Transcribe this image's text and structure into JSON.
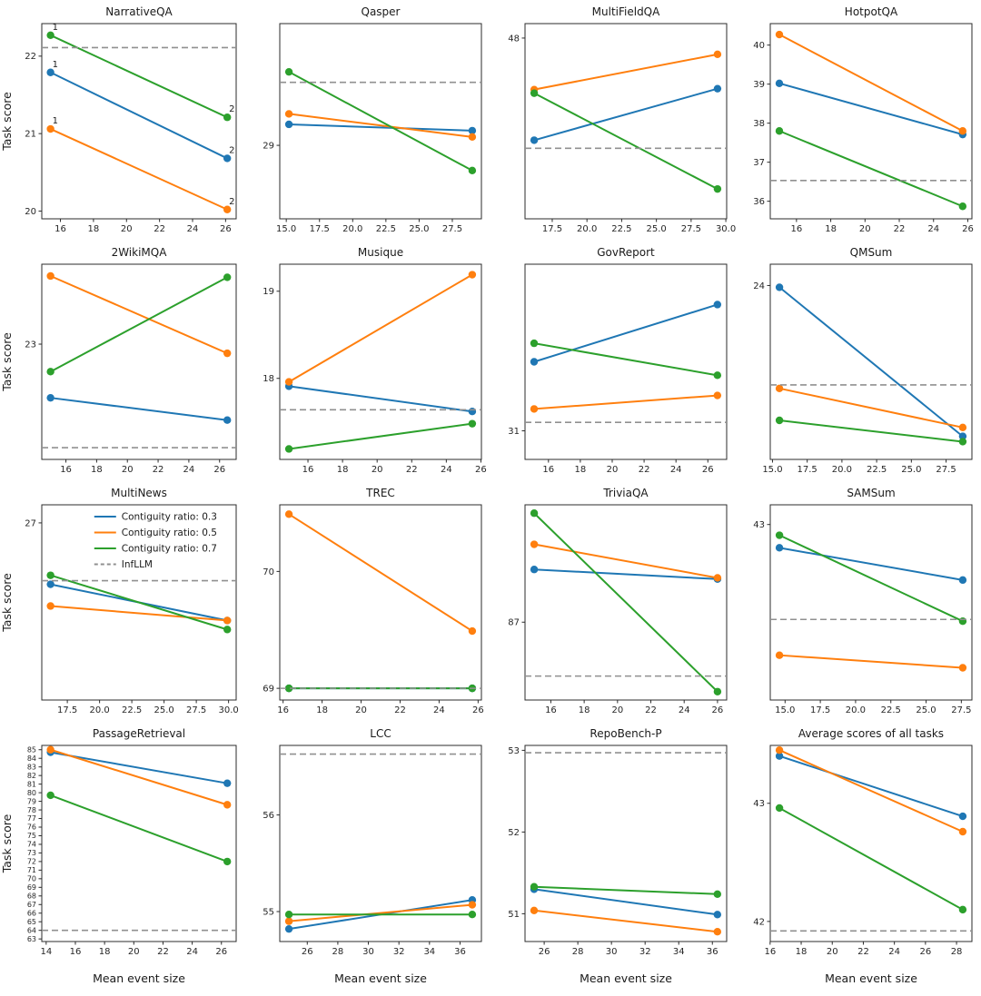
{
  "figure": {
    "ylabel": "Task score",
    "xlabel": "Mean event size",
    "colors": {
      "blue": "#1f77b4",
      "orange": "#ff7f0e",
      "green": "#2ca02c",
      "dashed": "#909090",
      "spine": "#2b2b2b",
      "text": "#262626",
      "title": "#1a1a1a"
    },
    "legend": {
      "entries": [
        {
          "label": "Contiguity ratio: 0.3",
          "color_key": "blue",
          "style": "solid"
        },
        {
          "label": "Contiguity ratio: 0.5",
          "color_key": "orange",
          "style": "solid"
        },
        {
          "label": "Contiguity ratio: 0.7",
          "color_key": "green",
          "style": "solid"
        },
        {
          "label": "InfLLM",
          "color_key": "dashed",
          "style": "dashed"
        }
      ]
    }
  },
  "chart_data": [
    {
      "type": "line",
      "title": "NarrativeQA",
      "ylabel": "Task score",
      "x": [
        15.4,
        26.1
      ],
      "xlim": [
        14.87,
        26.64
      ],
      "ylim": [
        19.9,
        22.42
      ],
      "xticks": [
        "16",
        "18",
        "20",
        "22",
        "24",
        "26"
      ],
      "yticks": [
        "20",
        "21",
        "22"
      ],
      "series": [
        {
          "name": "Contiguity ratio: 0.3",
          "color_key": "blue",
          "values": [
            21.79,
            20.68
          ]
        },
        {
          "name": "Contiguity ratio: 0.5",
          "color_key": "orange",
          "values": [
            21.06,
            20.02
          ]
        },
        {
          "name": "Contiguity ratio: 0.7",
          "color_key": "green",
          "values": [
            22.27,
            21.21
          ]
        }
      ],
      "infllm_baseline": 22.11,
      "point_labels": [
        "1",
        "2"
      ]
    },
    {
      "type": "line",
      "title": "Qasper",
      "x": [
        15.2,
        29.0
      ],
      "xlim": [
        14.51,
        29.69
      ],
      "ylim": [
        28.65,
        29.58
      ],
      "xticks": [
        "15.0",
        "17.5",
        "20.0",
        "22.5",
        "25.0",
        "27.5"
      ],
      "yticks": [
        "29"
      ],
      "series": [
        {
          "name": "Contiguity ratio: 0.3",
          "color_key": "blue",
          "values": [
            29.1,
            29.07
          ]
        },
        {
          "name": "Contiguity ratio: 0.5",
          "color_key": "orange",
          "values": [
            29.15,
            29.04
          ]
        },
        {
          "name": "Contiguity ratio: 0.7",
          "color_key": "green",
          "values": [
            29.35,
            28.88
          ]
        }
      ],
      "infllm_baseline": 29.3
    },
    {
      "type": "line",
      "title": "MultiFieldQA",
      "x": [
        16.2,
        29.4
      ],
      "xlim": [
        15.54,
        30.06
      ],
      "ylim": [
        46.0,
        48.16
      ],
      "xticks": [
        "17.5",
        "20.0",
        "22.5",
        "25.0",
        "27.5",
        "30.0"
      ],
      "yticks": [
        "48"
      ],
      "series": [
        {
          "name": "Contiguity ratio: 0.3",
          "color_key": "blue",
          "values": [
            46.87,
            47.44
          ]
        },
        {
          "name": "Contiguity ratio: 0.5",
          "color_key": "orange",
          "values": [
            47.43,
            47.82
          ]
        },
        {
          "name": "Contiguity ratio: 0.7",
          "color_key": "green",
          "values": [
            47.39,
            46.33
          ]
        }
      ],
      "infllm_baseline": 46.78
    },
    {
      "type": "line",
      "title": "HotpotQA",
      "x": [
        15.0,
        25.7
      ],
      "xlim": [
        14.47,
        26.24
      ],
      "ylim": [
        35.55,
        40.55
      ],
      "xticks": [
        "16",
        "18",
        "20",
        "22",
        "24",
        "26"
      ],
      "yticks": [
        "36",
        "37",
        "38",
        "39",
        "40"
      ],
      "series": [
        {
          "name": "Contiguity ratio: 0.3",
          "color_key": "blue",
          "values": [
            39.02,
            37.71
          ]
        },
        {
          "name": "Contiguity ratio: 0.5",
          "color_key": "orange",
          "values": [
            40.27,
            37.8
          ]
        },
        {
          "name": "Contiguity ratio: 0.7",
          "color_key": "green",
          "values": [
            37.8,
            35.87
          ]
        }
      ],
      "infllm_baseline": 36.53
    },
    {
      "type": "line",
      "title": "2WikiMQA",
      "ylabel": "Task score",
      "x": [
        15.0,
        26.5
      ],
      "xlim": [
        14.43,
        27.08
      ],
      "ylim": [
        22.12,
        23.61
      ],
      "xticks": [
        "16",
        "18",
        "20",
        "22",
        "24",
        "26"
      ],
      "yticks": [
        "23"
      ],
      "series": [
        {
          "name": "Contiguity ratio: 0.3",
          "color_key": "blue",
          "values": [
            22.59,
            22.42
          ]
        },
        {
          "name": "Contiguity ratio: 0.5",
          "color_key": "orange",
          "values": [
            23.52,
            22.93
          ]
        },
        {
          "name": "Contiguity ratio: 0.7",
          "color_key": "green",
          "values": [
            22.79,
            23.51
          ]
        }
      ],
      "infllm_baseline": 22.21
    },
    {
      "type": "line",
      "title": "Musique",
      "x": [
        14.9,
        25.5
      ],
      "xlim": [
        14.37,
        26.03
      ],
      "ylim": [
        17.07,
        19.31
      ],
      "xticks": [
        "16",
        "18",
        "20",
        "22",
        "24",
        "26"
      ],
      "yticks": [
        "18",
        "19"
      ],
      "series": [
        {
          "name": "Contiguity ratio: 0.3",
          "color_key": "blue",
          "values": [
            17.91,
            17.62
          ]
        },
        {
          "name": "Contiguity ratio: 0.5",
          "color_key": "orange",
          "values": [
            17.96,
            19.19
          ]
        },
        {
          "name": "Contiguity ratio: 0.7",
          "color_key": "green",
          "values": [
            17.19,
            17.48
          ]
        }
      ],
      "infllm_baseline": 17.64
    },
    {
      "type": "line",
      "title": "GovReport",
      "x": [
        15.1,
        26.6
      ],
      "xlim": [
        14.53,
        27.18
      ],
      "ylim": [
        30.83,
        31.99
      ],
      "xticks": [
        "16",
        "18",
        "20",
        "22",
        "24",
        "26"
      ],
      "yticks": [
        "31"
      ],
      "series": [
        {
          "name": "Contiguity ratio: 0.3",
          "color_key": "blue",
          "values": [
            31.41,
            31.75
          ]
        },
        {
          "name": "Contiguity ratio: 0.5",
          "color_key": "orange",
          "values": [
            31.13,
            31.21
          ]
        },
        {
          "name": "Contiguity ratio: 0.7",
          "color_key": "green",
          "values": [
            31.52,
            31.33
          ]
        }
      ],
      "infllm_baseline": 31.05
    },
    {
      "type": "line",
      "title": "QMSum",
      "x": [
        15.5,
        28.7
      ],
      "xlim": [
        14.84,
        29.36
      ],
      "ylim": [
        23.02,
        24.12
      ],
      "xticks": [
        "15.0",
        "17.5",
        "20.0",
        "22.5",
        "25.0",
        "27.5"
      ],
      "yticks": [
        "24"
      ],
      "series": [
        {
          "name": "Contiguity ratio: 0.3",
          "color_key": "blue",
          "values": [
            23.99,
            23.15
          ]
        },
        {
          "name": "Contiguity ratio: 0.5",
          "color_key": "orange",
          "values": [
            23.42,
            23.2
          ]
        },
        {
          "name": "Contiguity ratio: 0.7",
          "color_key": "green",
          "values": [
            23.24,
            23.12
          ]
        }
      ],
      "infllm_baseline": 23.44
    },
    {
      "type": "line",
      "title": "MultiNews",
      "ylabel": "Task score",
      "legend": true,
      "x": [
        16.2,
        29.9
      ],
      "xlim": [
        15.52,
        30.59
      ],
      "ylim": [
        26.02,
        27.1
      ],
      "xticks": [
        "17.5",
        "20.0",
        "22.5",
        "25.0",
        "27.5",
        "30.0"
      ],
      "yticks": [
        "27"
      ],
      "series": [
        {
          "name": "Contiguity ratio: 0.3",
          "color_key": "blue",
          "values": [
            26.66,
            26.46
          ]
        },
        {
          "name": "Contiguity ratio: 0.5",
          "color_key": "orange",
          "values": [
            26.54,
            26.46
          ]
        },
        {
          "name": "Contiguity ratio: 0.7",
          "color_key": "green",
          "values": [
            26.71,
            26.41
          ]
        }
      ],
      "infllm_baseline": 26.68
    },
    {
      "type": "line",
      "title": "TREC",
      "x": [
        16.3,
        25.7
      ],
      "xlim": [
        15.83,
        26.17
      ],
      "ylim": [
        68.9,
        70.57
      ],
      "xticks": [
        "16",
        "18",
        "20",
        "22",
        "24",
        "26"
      ],
      "yticks": [
        "69",
        "70"
      ],
      "series": [
        {
          "name": "Contiguity ratio: 0.3",
          "color_key": "blue",
          "values": [
            69.0,
            69.0
          ]
        },
        {
          "name": "Contiguity ratio: 0.5",
          "color_key": "orange",
          "values": [
            70.49,
            69.49
          ]
        },
        {
          "name": "Contiguity ratio: 0.7",
          "color_key": "green",
          "values": [
            69.0,
            69.0
          ]
        }
      ],
      "infllm_baseline": 69.0
    },
    {
      "type": "line",
      "title": "TriviaQA",
      "x": [
        15.0,
        26.0
      ],
      "xlim": [
        14.45,
        26.55
      ],
      "ylim": [
        86.35,
        87.98
      ],
      "xticks": [
        "16",
        "18",
        "20",
        "22",
        "24",
        "26"
      ],
      "yticks": [
        "87"
      ],
      "series": [
        {
          "name": "Contiguity ratio: 0.3",
          "color_key": "blue",
          "values": [
            87.44,
            87.36
          ]
        },
        {
          "name": "Contiguity ratio: 0.5",
          "color_key": "orange",
          "values": [
            87.65,
            87.37
          ]
        },
        {
          "name": "Contiguity ratio: 0.7",
          "color_key": "green",
          "values": [
            87.91,
            86.42
          ]
        }
      ],
      "infllm_baseline": 86.55
    },
    {
      "type": "line",
      "title": "SAMSum",
      "x": [
        14.6,
        27.6
      ],
      "xlim": [
        13.95,
        28.25
      ],
      "ylim": [
        42.02,
        43.11
      ],
      "xticks": [
        "15.0",
        "17.5",
        "20.0",
        "22.5",
        "25.0",
        "27.5"
      ],
      "yticks": [
        "43"
      ],
      "series": [
        {
          "name": "Contiguity ratio: 0.3",
          "color_key": "blue",
          "values": [
            42.87,
            42.69
          ]
        },
        {
          "name": "Contiguity ratio: 0.5",
          "color_key": "orange",
          "values": [
            42.27,
            42.2
          ]
        },
        {
          "name": "Contiguity ratio: 0.7",
          "color_key": "green",
          "values": [
            42.94,
            42.46
          ]
        }
      ],
      "infllm_baseline": 42.47
    },
    {
      "type": "line",
      "title": "PassageRetrieval",
      "ylabel": "Task score",
      "xlabel": "Mean event size",
      "x": [
        14.3,
        26.4
      ],
      "xlim": [
        13.7,
        27.01
      ],
      "ylim": [
        62.7,
        85.5
      ],
      "xticks": [
        "14",
        "16",
        "18",
        "20",
        "22",
        "24",
        "26"
      ],
      "yticks": [
        "63",
        "64",
        "65",
        "66",
        "67",
        "68",
        "69",
        "70",
        "71",
        "72",
        "73",
        "74",
        "75",
        "76",
        "77",
        "78",
        "79",
        "80",
        "81",
        "82",
        "83",
        "84",
        "85"
      ],
      "series": [
        {
          "name": "Contiguity ratio: 0.3",
          "color_key": "blue",
          "values": [
            84.7,
            81.1
          ]
        },
        {
          "name": "Contiguity ratio: 0.5",
          "color_key": "orange",
          "values": [
            85.0,
            78.6
          ]
        },
        {
          "name": "Contiguity ratio: 0.7",
          "color_key": "green",
          "values": [
            79.7,
            72.0
          ]
        }
      ],
      "infllm_baseline": 64.0
    },
    {
      "type": "line",
      "title": "LCC",
      "xlabel": "Mean event size",
      "x": [
        24.8,
        36.8
      ],
      "xlim": [
        24.2,
        37.4
      ],
      "ylim": [
        54.69,
        56.72
      ],
      "xticks": [
        "26",
        "28",
        "30",
        "32",
        "34",
        "36"
      ],
      "yticks": [
        "55",
        "56"
      ],
      "series": [
        {
          "name": "Contiguity ratio: 0.3",
          "color_key": "blue",
          "values": [
            54.82,
            55.12
          ]
        },
        {
          "name": "Contiguity ratio: 0.5",
          "color_key": "orange",
          "values": [
            54.9,
            55.07
          ]
        },
        {
          "name": "Contiguity ratio: 0.7",
          "color_key": "green",
          "values": [
            54.97,
            54.97
          ]
        }
      ],
      "infllm_baseline": 56.63
    },
    {
      "type": "line",
      "title": "RepoBench-P",
      "xlabel": "Mean event size",
      "x": [
        25.4,
        36.3
      ],
      "xlim": [
        24.86,
        36.85
      ],
      "ylim": [
        50.66,
        53.06
      ],
      "xticks": [
        "26",
        "28",
        "30",
        "32",
        "34",
        "36"
      ],
      "yticks": [
        "51",
        "52",
        "53"
      ],
      "series": [
        {
          "name": "Contiguity ratio: 0.3",
          "color_key": "blue",
          "values": [
            51.3,
            50.99
          ]
        },
        {
          "name": "Contiguity ratio: 0.5",
          "color_key": "orange",
          "values": [
            51.04,
            50.78
          ]
        },
        {
          "name": "Contiguity ratio: 0.7",
          "color_key": "green",
          "values": [
            51.33,
            51.24
          ]
        }
      ],
      "infllm_baseline": 52.97
    },
    {
      "type": "line",
      "title": "Average scores of all tasks",
      "xlabel": "Mean event size",
      "x": [
        16.6,
        28.4
      ],
      "xlim": [
        16.01,
        28.99
      ],
      "ylim": [
        41.83,
        43.49
      ],
      "xticks": [
        "16",
        "18",
        "20",
        "22",
        "24",
        "26",
        "28"
      ],
      "yticks": [
        "42",
        "43"
      ],
      "series": [
        {
          "name": "Contiguity ratio: 0.3",
          "color_key": "blue",
          "values": [
            43.4,
            42.89
          ]
        },
        {
          "name": "Contiguity ratio: 0.5",
          "color_key": "orange",
          "values": [
            43.45,
            42.76
          ]
        },
        {
          "name": "Contiguity ratio: 0.7",
          "color_key": "green",
          "values": [
            42.96,
            42.1
          ]
        }
      ],
      "infllm_baseline": 41.92
    }
  ]
}
